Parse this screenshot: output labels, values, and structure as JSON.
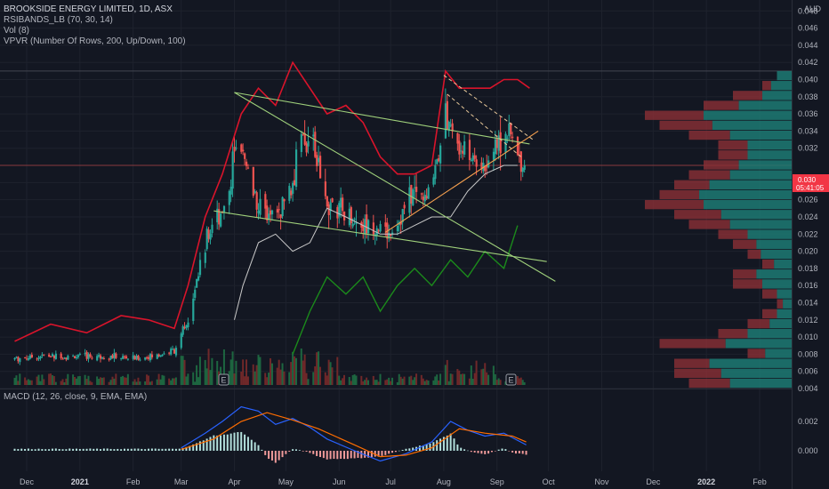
{
  "legend": {
    "title": "BROOKSIDE ENERGY LIMITED, 1D, ASX",
    "ind1": "RSIBANDS_LB (70, 30, 14)",
    "ind2": "Vol (8)",
    "ind3": "VPVR (Number Of Rows, 200, Up/Down, 100)",
    "macd": "MACD (12, 26, close, 9, EMA, EMA)"
  },
  "currency": "AUD",
  "price_box": {
    "price": "0.030",
    "countdown": "05:41:05"
  },
  "event_marker": "E",
  "colors": {
    "up": "#26a69a",
    "down": "#ef5350",
    "band": "#d9142b",
    "rsi_green": "#1b8a1b",
    "trend": "#9fd07b",
    "support": "#f7a14f",
    "macd": "#2962ff",
    "signal": "#ff6d00"
  },
  "chart_data": {
    "type": "candlestick",
    "x_axis_labels": [
      "Dec",
      "2021",
      "Feb",
      "Mar",
      "Apr",
      "May",
      "Jun",
      "Jul",
      "Aug",
      "Sep",
      "Oct",
      "Nov",
      "Dec",
      "2022",
      "Feb"
    ],
    "y_axis": {
      "ticks": [
        "0.048",
        "0.046",
        "0.044",
        "0.042",
        "0.040",
        "0.038",
        "0.036",
        "0.034",
        "0.032",
        "0.028",
        "0.026",
        "0.024",
        "0.022",
        "0.020",
        "0.018",
        "0.016",
        "0.014",
        "0.012",
        "0.010",
        "0.008",
        "0.006",
        "0.004"
      ],
      "range": [
        0.004,
        0.05
      ]
    },
    "macd_axis": {
      "ticks": [
        "0.002",
        "0.000"
      ]
    },
    "close_series": [
      [
        "2020-11-24",
        0.0075
      ],
      [
        "2020-12-10",
        0.0078
      ],
      [
        "2020-12-28",
        0.0077
      ],
      [
        "2021-01-15",
        0.0078
      ],
      [
        "2021-02-01",
        0.0075
      ],
      [
        "2021-02-15",
        0.0078
      ],
      [
        "2021-02-25",
        0.0085
      ],
      [
        "2021-03-05",
        0.012
      ],
      [
        "2021-03-10",
        0.017
      ],
      [
        "2021-03-15",
        0.021
      ],
      [
        "2021-03-22",
        0.024
      ],
      [
        "2021-03-29",
        0.027
      ],
      [
        "2021-04-01",
        0.032
      ],
      [
        "2021-04-06",
        0.031
      ],
      [
        "2021-04-12",
        0.027
      ],
      [
        "2021-04-20",
        0.024
      ],
      [
        "2021-04-28",
        0.025
      ],
      [
        "2021-05-05",
        0.028
      ],
      [
        "2021-05-10",
        0.034
      ],
      [
        "2021-05-17",
        0.032
      ],
      [
        "2021-05-24",
        0.026
      ],
      [
        "2021-05-31",
        0.025
      ],
      [
        "2021-06-07",
        0.024
      ],
      [
        "2021-06-15",
        0.023
      ],
      [
        "2021-06-22",
        0.023
      ],
      [
        "2021-06-30",
        0.022
      ],
      [
        "2021-07-07",
        0.024
      ],
      [
        "2021-07-14",
        0.027
      ],
      [
        "2021-07-22",
        0.026
      ],
      [
        "2021-07-28",
        0.031
      ],
      [
        "2021-08-02",
        0.036
      ],
      [
        "2021-08-06",
        0.033
      ],
      [
        "2021-08-13",
        0.032
      ],
      [
        "2021-08-20",
        0.03
      ],
      [
        "2021-08-27",
        0.031
      ],
      [
        "2021-09-03",
        0.033
      ],
      [
        "2021-09-08",
        0.034
      ],
      [
        "2021-09-13",
        0.031
      ],
      [
        "2021-09-17",
        0.03
      ]
    ],
    "upper_band": [
      [
        "2020-11-24",
        0.0095
      ],
      [
        "2020-12-15",
        0.0115
      ],
      [
        "2021-01-05",
        0.0105
      ],
      [
        "2021-01-25",
        0.0125
      ],
      [
        "2021-02-10",
        0.012
      ],
      [
        "2021-02-25",
        0.011
      ],
      [
        "2021-03-05",
        0.016
      ],
      [
        "2021-03-15",
        0.024
      ],
      [
        "2021-03-25",
        0.029
      ],
      [
        "2021-04-05",
        0.036
      ],
      [
        "2021-04-15",
        0.039
      ],
      [
        "2021-04-25",
        0.037
      ],
      [
        "2021-05-05",
        0.042
      ],
      [
        "2021-05-15",
        0.039
      ],
      [
        "2021-05-25",
        0.036
      ],
      [
        "2021-06-05",
        0.037
      ],
      [
        "2021-06-15",
        0.035
      ],
      [
        "2021-06-25",
        0.031
      ],
      [
        "2021-07-05",
        0.029
      ],
      [
        "2021-07-15",
        0.029
      ],
      [
        "2021-07-25",
        0.03
      ],
      [
        "2021-08-02",
        0.041
      ],
      [
        "2021-08-10",
        0.039
      ],
      [
        "2021-08-20",
        0.039
      ],
      [
        "2021-08-28",
        0.039
      ],
      [
        "2021-09-05",
        0.04
      ],
      [
        "2021-09-13",
        0.04
      ],
      [
        "2021-09-20",
        0.039
      ]
    ],
    "lower_band": [
      [
        "2021-04-01",
        0.012
      ],
      [
        "2021-04-06",
        0.016
      ],
      [
        "2021-04-15",
        0.021
      ],
      [
        "2021-04-25",
        0.022
      ],
      [
        "2021-05-05",
        0.02
      ],
      [
        "2021-05-15",
        0.021
      ],
      [
        "2021-05-25",
        0.025
      ],
      [
        "2021-06-05",
        0.024
      ],
      [
        "2021-06-15",
        0.023
      ],
      [
        "2021-06-25",
        0.022
      ],
      [
        "2021-07-05",
        0.022
      ],
      [
        "2021-07-15",
        0.023
      ],
      [
        "2021-07-25",
        0.024
      ],
      [
        "2021-08-05",
        0.024
      ],
      [
        "2021-08-15",
        0.027
      ],
      [
        "2021-08-25",
        0.029
      ],
      [
        "2021-09-05",
        0.03
      ],
      [
        "2021-09-13",
        0.03
      ]
    ],
    "rsi_green": [
      [
        "2021-05-05",
        0.008
      ],
      [
        "2021-05-15",
        0.013
      ],
      [
        "2021-05-25",
        0.017
      ],
      [
        "2021-06-05",
        0.015
      ],
      [
        "2021-06-15",
        0.017
      ],
      [
        "2021-06-25",
        0.013
      ],
      [
        "2021-07-05",
        0.016
      ],
      [
        "2021-07-15",
        0.018
      ],
      [
        "2021-07-25",
        0.016
      ],
      [
        "2021-08-05",
        0.019
      ],
      [
        "2021-08-15",
        0.017
      ],
      [
        "2021-08-25",
        0.02
      ],
      [
        "2021-09-05",
        0.018
      ],
      [
        "2021-09-13",
        0.023
      ]
    ],
    "trendlines": [
      {
        "from": [
          "2021-04-01",
          0.0385
        ],
        "to": [
          "2021-09-20",
          0.0325
        ]
      },
      {
        "from": [
          "2021-04-01",
          0.0385
        ],
        "to": [
          "2021-10-05",
          0.0165
        ]
      },
      {
        "from": [
          "2021-03-20",
          0.0247
        ],
        "to": [
          "2021-09-30",
          0.0188
        ]
      },
      {
        "from": [
          "2021-06-28",
          0.0222
        ],
        "to": [
          "2021-09-25",
          0.034
        ]
      }
    ],
    "dashed_lines": [
      {
        "from": [
          "2021-08-01",
          0.0405
        ],
        "to": [
          "2021-09-22",
          0.033
        ]
      },
      {
        "from": [
          "2021-08-03",
          0.0383
        ],
        "to": [
          "2021-09-15",
          0.031
        ]
      }
    ],
    "macd": {
      "macd_line": [
        [
          "2021-03-01",
          0.0002
        ],
        [
          "2021-03-15",
          0.0012
        ],
        [
          "2021-03-25",
          0.002
        ],
        [
          "2021-04-05",
          0.003
        ],
        [
          "2021-04-15",
          0.0027
        ],
        [
          "2021-04-25",
          0.0018
        ],
        [
          "2021-05-05",
          0.0022
        ],
        [
          "2021-05-15",
          0.0016
        ],
        [
          "2021-05-25",
          0.0008
        ],
        [
          "2021-06-10",
          0.0
        ],
        [
          "2021-06-25",
          -0.0007
        ],
        [
          "2021-07-10",
          -0.0002
        ],
        [
          "2021-07-25",
          0.0006
        ],
        [
          "2021-08-05",
          0.002
        ],
        [
          "2021-08-15",
          0.0014
        ],
        [
          "2021-08-25",
          0.001
        ],
        [
          "2021-09-05",
          0.0012
        ],
        [
          "2021-09-18",
          0.0004
        ]
      ],
      "signal_line": [
        [
          "2021-03-01",
          0.0001
        ],
        [
          "2021-03-20",
          0.0008
        ],
        [
          "2021-04-05",
          0.002
        ],
        [
          "2021-04-20",
          0.0026
        ],
        [
          "2021-05-05",
          0.0021
        ],
        [
          "2021-05-20",
          0.0015
        ],
        [
          "2021-06-10",
          0.0004
        ],
        [
          "2021-06-25",
          -0.0004
        ],
        [
          "2021-07-10",
          -0.0003
        ],
        [
          "2021-07-25",
          0.0002
        ],
        [
          "2021-08-10",
          0.0015
        ],
        [
          "2021-08-25",
          0.0012
        ],
        [
          "2021-09-10",
          0.001
        ],
        [
          "2021-09-18",
          0.0006
        ]
      ]
    },
    "volume_profile": {
      "price_range": [
        0.004,
        0.041
      ],
      "total": [
        0.7,
        0.8,
        0.8,
        0.3,
        0.9,
        0.5,
        0.3,
        0.2,
        0.1,
        0.2,
        0.4,
        0.4,
        0.2,
        0.3,
        0.4,
        0.5,
        0.7,
        0.8,
        1.0,
        0.9,
        0.8,
        0.7,
        0.6,
        0.5,
        0.5,
        0.7,
        0.9,
        1.0,
        0.6,
        0.4,
        0.2,
        0.1
      ],
      "up_fraction": [
        0.6,
        0.6,
        0.7,
        0.6,
        0.5,
        0.6,
        0.5,
        0.5,
        0.6,
        0.5,
        0.5,
        0.6,
        0.6,
        0.7,
        0.6,
        0.6,
        0.6,
        0.6,
        0.6,
        0.7,
        0.7,
        0.6,
        0.6,
        0.6,
        0.6,
        0.6,
        0.6,
        0.6,
        0.6,
        0.5,
        0.7,
        1.0
      ]
    }
  }
}
